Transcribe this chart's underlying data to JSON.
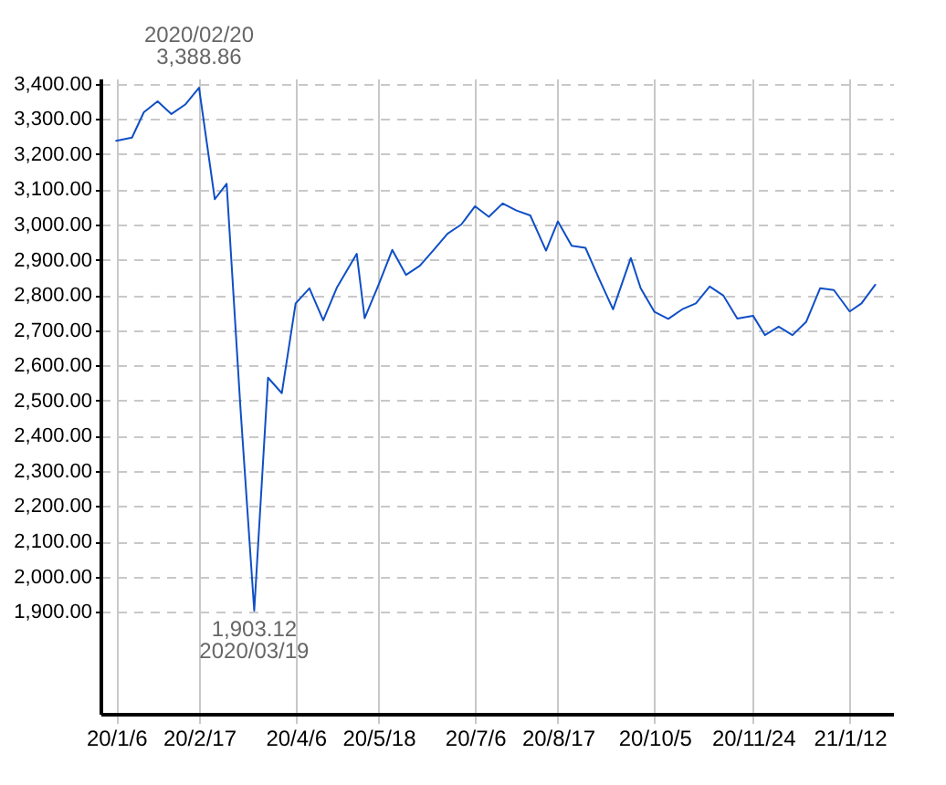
{
  "chart_data": {
    "type": "line",
    "x": [
      "2020-01-06",
      "2020-01-14",
      "2020-01-20",
      "2020-01-27",
      "2020-02-03",
      "2020-02-10",
      "2020-02-17",
      "2020-02-25",
      "2020-03-02",
      "2020-03-09",
      "2020-03-16",
      "2020-03-23",
      "2020-03-30",
      "2020-04-06",
      "2020-04-13",
      "2020-04-20",
      "2020-04-27",
      "2020-05-07",
      "2020-05-11",
      "2020-05-18",
      "2020-05-25",
      "2020-06-01",
      "2020-06-08",
      "2020-06-15",
      "2020-06-22",
      "2020-06-29",
      "2020-07-06",
      "2020-07-13",
      "2020-07-20",
      "2020-07-27",
      "2020-08-03",
      "2020-08-11",
      "2020-08-17",
      "2020-08-24",
      "2020-08-31",
      "2020-09-07",
      "2020-09-14",
      "2020-09-23",
      "2020-09-28",
      "2020-10-05",
      "2020-10-12",
      "2020-10-19",
      "2020-10-26",
      "2020-11-02",
      "2020-11-09",
      "2020-11-16",
      "2020-11-24",
      "2020-11-30",
      "2020-12-07",
      "2020-12-14",
      "2020-12-21",
      "2020-12-28",
      "2021-01-04",
      "2021-01-12",
      "2021-01-18",
      "2021-01-25"
    ],
    "values": [
      3238,
      3247,
      3319,
      3350,
      3314,
      3341,
      3388.86,
      3072,
      3116,
      2480,
      1903.12,
      2565,
      2521,
      2776,
      2819,
      2728,
      2822,
      2917,
      2734,
      2828,
      2928,
      2857,
      2883,
      2928,
      2974,
      3000,
      3052,
      3022,
      3060,
      3040,
      3026,
      2926,
      3009,
      2940,
      2934,
      2845,
      2759,
      2905,
      2819,
      2752,
      2732,
      2759,
      2776,
      2824,
      2798,
      2733,
      2741,
      2686,
      2710,
      2686,
      2724,
      2819,
      2814,
      2753,
      2776,
      2829
    ],
    "color": "#0f4fc6",
    "xlim": [
      "2019-12-29",
      "2021-02-03"
    ],
    "xticks": [
      {
        "value": "2020-01-06",
        "label": "20/1/6"
      },
      {
        "value": "2020-02-17",
        "label": "20/2/17"
      },
      {
        "value": "2020-04-06",
        "label": "20/4/6"
      },
      {
        "value": "2020-05-18",
        "label": "20/5/18"
      },
      {
        "value": "2020-07-06",
        "label": "20/7/6"
      },
      {
        "value": "2020-08-17",
        "label": "20/8/17"
      },
      {
        "value": "2020-10-05",
        "label": "20/10/5"
      },
      {
        "value": "2020-11-24",
        "label": "20/11/24"
      },
      {
        "value": "2021-01-12",
        "label": "21/1/12"
      }
    ],
    "ylim": [
      1610,
      3415
    ],
    "yticks": [
      {
        "value": 1900,
        "label": "1,900.00"
      },
      {
        "value": 2000,
        "label": "2,000.00"
      },
      {
        "value": 2100,
        "label": "2,100.00"
      },
      {
        "value": 2200,
        "label": "2,200.00"
      },
      {
        "value": 2300,
        "label": "2,300.00"
      },
      {
        "value": 2400,
        "label": "2,400.00"
      },
      {
        "value": 2500,
        "label": "2,500.00"
      },
      {
        "value": 2600,
        "label": "2,600.00"
      },
      {
        "value": 2700,
        "label": "2,700.00"
      },
      {
        "value": 2800,
        "label": "2,800.00"
      },
      {
        "value": 2900,
        "label": "2,900.00"
      },
      {
        "value": 3000,
        "label": "3,000.00"
      },
      {
        "value": 3100,
        "label": "3,100.00"
      },
      {
        "value": 3200,
        "label": "3,200.00"
      },
      {
        "value": 3300,
        "label": "3,300.00"
      },
      {
        "value": 3400,
        "label": "3,400.00"
      }
    ],
    "grid": true,
    "annotations": [
      {
        "text": "2020/02/20\n3,388.86",
        "x": "2020-02-17",
        "y": 3388.86
      },
      {
        "text": "1,903.12\n2020/03/19",
        "x": "2020-03-16",
        "y": 1903.12
      }
    ]
  }
}
